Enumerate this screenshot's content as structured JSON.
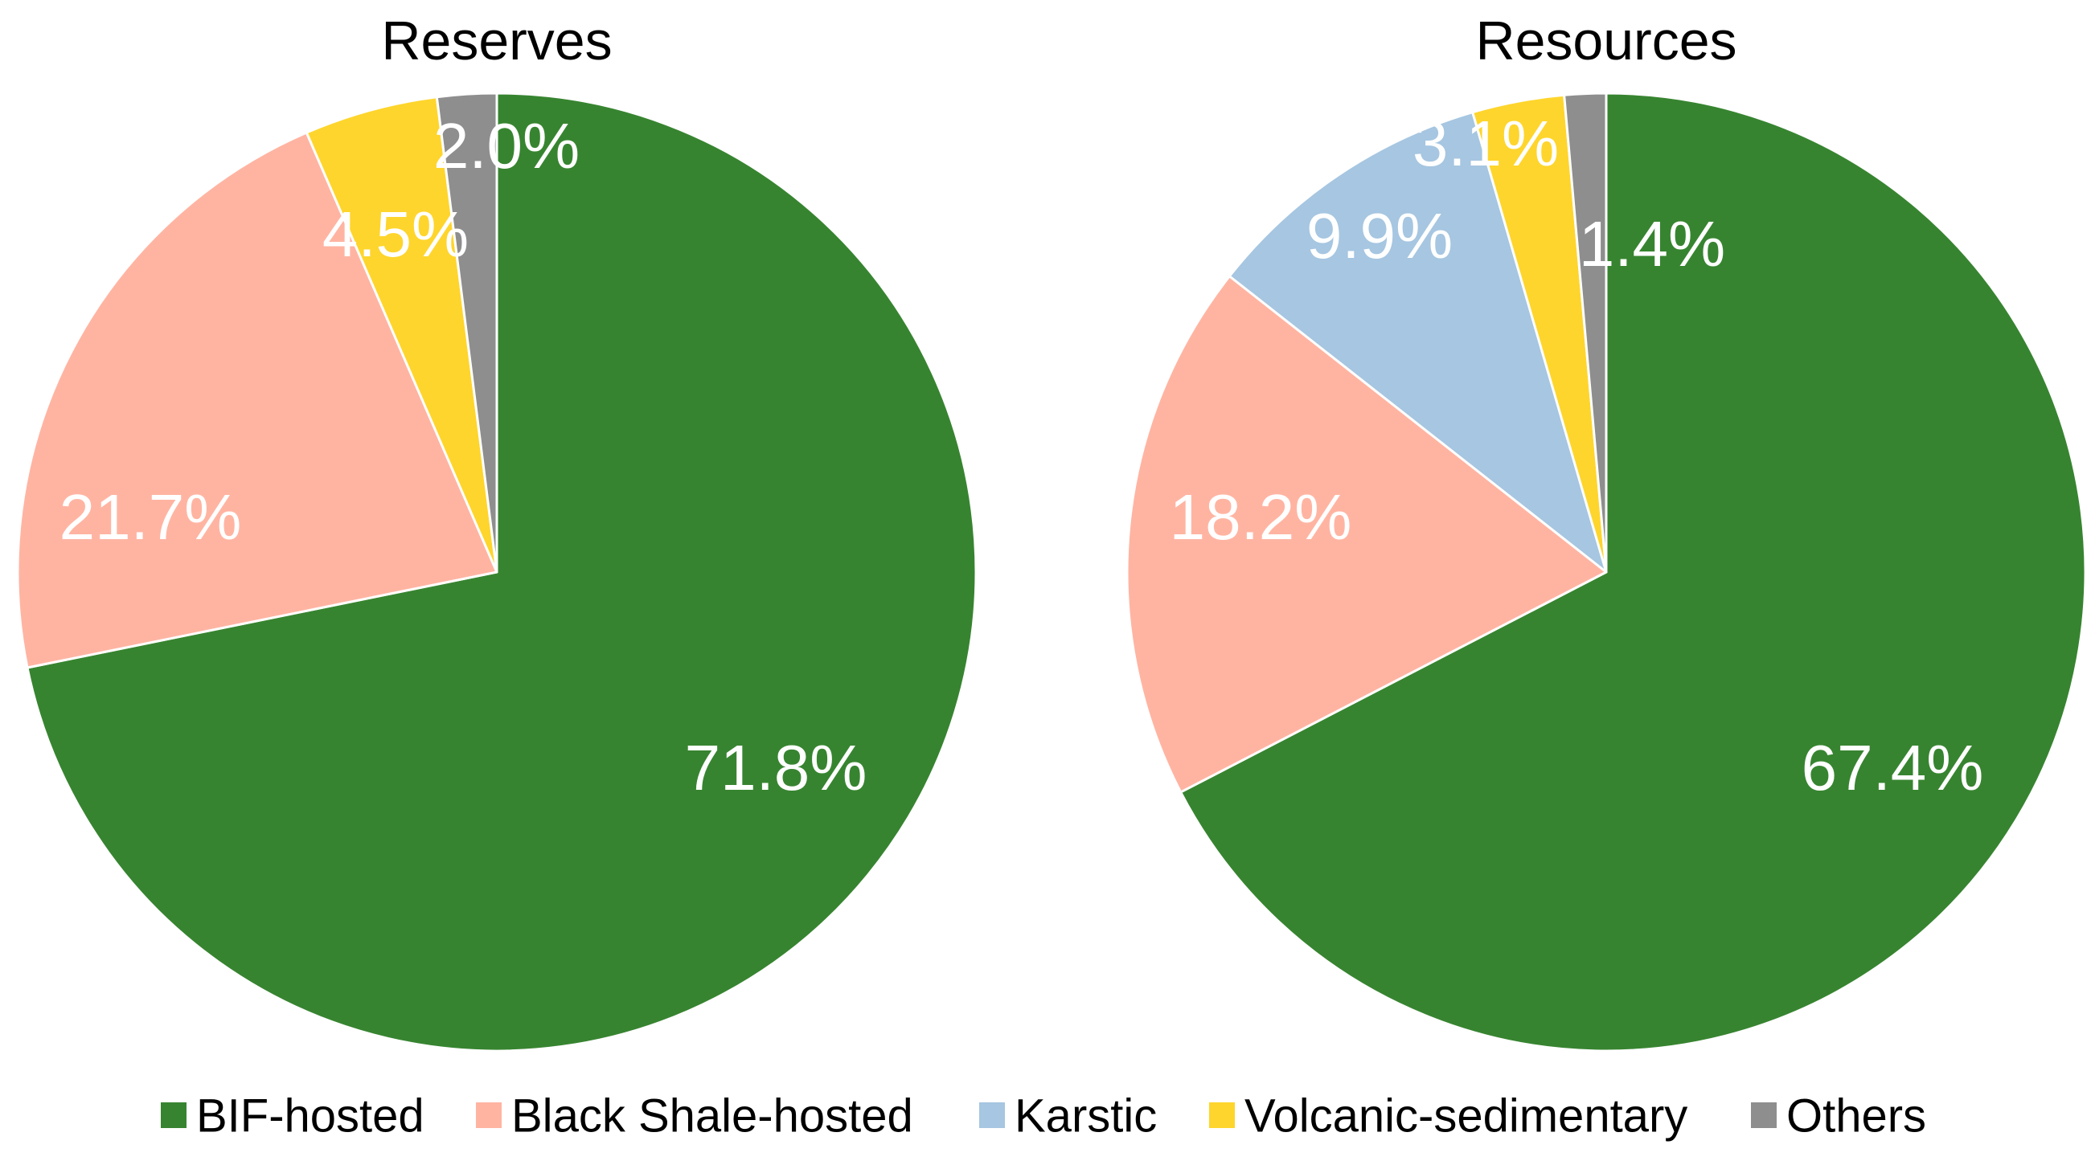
{
  "chart_data": [
    {
      "type": "pie",
      "title": "Reserves",
      "start_angle_deg": 0,
      "direction": "clockwise",
      "slices": [
        {
          "name": "BIF-hosted",
          "value": 71.8,
          "label": "71.8%"
        },
        {
          "name": "Black Shale-hosted",
          "value": 21.7,
          "label": "21.7%"
        },
        {
          "name": "Volcanic-sedimentary",
          "value": 4.5,
          "label": "4.5%"
        },
        {
          "name": "Others",
          "value": 2.0,
          "label": "2.0%"
        }
      ]
    },
    {
      "type": "pie",
      "title": "Resources",
      "start_angle_deg": 0,
      "direction": "clockwise",
      "slices": [
        {
          "name": "BIF-hosted",
          "value": 67.4,
          "label": "67.4%"
        },
        {
          "name": "Black Shale-hosted",
          "value": 18.2,
          "label": "18.2%"
        },
        {
          "name": "Karstic",
          "value": 9.9,
          "label": "9.9%"
        },
        {
          "name": "Volcanic-sedimentary",
          "value": 3.1,
          "label": "3.1%"
        },
        {
          "name": "Others",
          "value": 1.4,
          "label": "1.4%"
        }
      ]
    }
  ],
  "legend": {
    "placement": "bottom",
    "items": [
      {
        "name": "BIF-hosted",
        "color": "#378430"
      },
      {
        "name": "Black Shale-hosted",
        "color": "#FFB4A2"
      },
      {
        "name": "Karstic",
        "color": "#A6C6E1"
      },
      {
        "name": "Volcanic-sedimentary",
        "color": "#FED52C"
      },
      {
        "name": "Others",
        "color": "#8E8E8E"
      }
    ]
  },
  "colors": {
    "BIF-hosted": "#378430",
    "Black Shale-hosted": "#FFB4A2",
    "Karstic": "#A6C6E1",
    "Volcanic-sedimentary": "#FED52C",
    "Others": "#8E8E8E",
    "slice_border": "#FFFFFF",
    "label_text": "#FFFFFF"
  }
}
